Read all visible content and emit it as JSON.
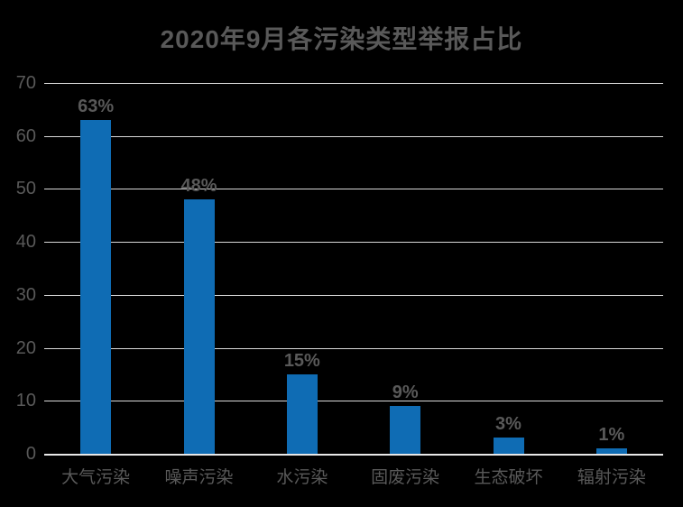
{
  "chart_data": {
    "type": "bar",
    "title": "2020年9月各污染类型举报占比",
    "categories": [
      "大气污染",
      "噪声污染",
      "水污染",
      "固废污染",
      "生态破坏",
      "辐射污染"
    ],
    "values": [
      63,
      48,
      15,
      9,
      3,
      1
    ],
    "value_labels": [
      "63%",
      "48%",
      "15%",
      "9%",
      "3%",
      "1%"
    ],
    "xlabel": "",
    "ylabel": "",
    "ylim": [
      0,
      70
    ],
    "yticks": [
      0,
      10,
      20,
      30,
      40,
      50,
      60,
      70
    ],
    "grid": true,
    "legend": false
  },
  "colors": {
    "background": "#000000",
    "bar": "#0F6CB4",
    "text": "#595959",
    "gridline": "#D9D9D9",
    "axis_line": "#E8E8E8"
  }
}
